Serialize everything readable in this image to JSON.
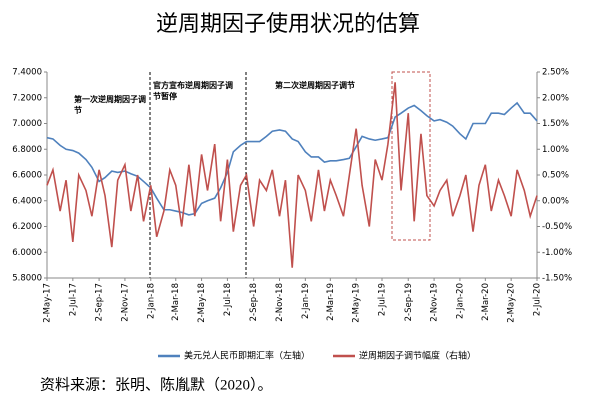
{
  "chart_data": {
    "type": "line",
    "title": "逆周期因子使用状况的估算",
    "source": "资料来源：张明、陈胤默（2020）。",
    "annotations": [
      "第一次逆周期因子调节",
      "官方宣布逆周期因子调节暂停",
      "第二次逆周期因子调节"
    ],
    "x": [
      "2-May-17",
      "16-May-17",
      "2-Jun-17",
      "16-Jun-17",
      "2-Jul-17",
      "16-Jul-17",
      "2-Aug-17",
      "16-Aug-17",
      "2-Sep-17",
      "16-Sep-17",
      "2-Oct-17",
      "16-Oct-17",
      "2-Nov-17",
      "16-Nov-17",
      "2-Dec-17",
      "16-Dec-17",
      "2-Jan-18",
      "16-Jan-18",
      "2-Feb-18",
      "16-Feb-18",
      "2-Mar-18",
      "16-Mar-18",
      "2-Apr-18",
      "16-Apr-18",
      "2-May-18",
      "16-May-18",
      "2-Jun-18",
      "16-Jun-18",
      "2-Jul-18",
      "16-Jul-18",
      "2-Aug-18",
      "16-Aug-18",
      "2-Sep-18",
      "16-Sep-18",
      "2-Oct-18",
      "16-Oct-18",
      "2-Nov-18",
      "16-Nov-18",
      "2-Dec-18",
      "16-Dec-18",
      "2-Jan-19",
      "16-Jan-19",
      "2-Feb-19",
      "16-Feb-19",
      "2-Mar-19",
      "16-Mar-19",
      "2-Apr-19",
      "16-Apr-19",
      "2-May-19",
      "16-May-19",
      "2-Jun-19",
      "16-Jun-19",
      "2-Jul-19",
      "16-Jul-19",
      "2-Aug-19",
      "16-Aug-19",
      "2-Sep-19",
      "16-Sep-19",
      "2-Oct-19",
      "16-Oct-19",
      "2-Nov-19",
      "16-Nov-19",
      "2-Dec-19",
      "16-Dec-19",
      "2-Jan-20",
      "16-Jan-20",
      "2-Feb-20",
      "16-Feb-20",
      "2-Mar-20",
      "16-Mar-20",
      "2-Apr-20",
      "16-Apr-20",
      "2-May-20",
      "16-May-20",
      "2-Jun-20",
      "16-Jun-20",
      "2-Jul-20"
    ],
    "xticks": [
      "2-May-17",
      "2-Jul-17",
      "2-Sep-17",
      "2-Nov-17",
      "2-Jan-18",
      "2-Mar-18",
      "2-May-18",
      "2-Jul-18",
      "2-Sep-18",
      "2-Nov-18",
      "2-Jan-19",
      "2-Mar-19",
      "2-May-19",
      "2-Jul-19",
      "2-Sep-19",
      "2-Nov-19",
      "2-Jan-20",
      "2-Mar-20",
      "2-May-20",
      "2-Jul-20"
    ],
    "series": [
      {
        "name": "美元兑人民币即期汇率（左轴）",
        "color": "#4f81bd",
        "axis": "y",
        "values": [
          6.89,
          6.88,
          6.83,
          6.8,
          6.79,
          6.77,
          6.72,
          6.66,
          6.55,
          6.58,
          6.63,
          6.62,
          6.63,
          6.61,
          6.59,
          6.55,
          6.5,
          6.42,
          6.33,
          6.33,
          6.32,
          6.31,
          6.29,
          6.3,
          6.38,
          6.4,
          6.42,
          6.5,
          6.62,
          6.78,
          6.83,
          6.86,
          6.86,
          6.86,
          6.9,
          6.94,
          6.95,
          6.94,
          6.88,
          6.86,
          6.78,
          6.74,
          6.74,
          6.7,
          6.71,
          6.71,
          6.72,
          6.73,
          6.82,
          6.9,
          6.88,
          6.87,
          6.88,
          6.89,
          7.05,
          7.08,
          7.12,
          7.14,
          7.1,
          7.06,
          7.02,
          7.03,
          7.01,
          6.98,
          6.92,
          6.88,
          7.0,
          7.0,
          7.0,
          7.08,
          7.08,
          7.07,
          7.12,
          7.16,
          7.08,
          7.08,
          7.02
        ]
      },
      {
        "name": "逆周期因子调节幅度（右轴）",
        "color": "#c0504d",
        "axis": "y2",
        "values": [
          0.3,
          0.6,
          -0.2,
          0.4,
          -0.8,
          0.5,
          0.2,
          -0.3,
          0.6,
          0.1,
          -0.9,
          0.4,
          0.7,
          -0.2,
          0.5,
          -0.4,
          0.3,
          -0.7,
          -0.2,
          0.6,
          0.3,
          -0.5,
          0.7,
          -0.3,
          0.9,
          0.2,
          1.1,
          -0.4,
          0.8,
          -0.6,
          0.3,
          0.5,
          -0.5,
          0.4,
          0.2,
          0.6,
          -0.3,
          0.4,
          -1.3,
          0.5,
          0.2,
          -0.4,
          0.6,
          -0.2,
          0.4,
          0.1,
          -0.3,
          0.5,
          1.4,
          0.3,
          -0.5,
          0.8,
          0.4,
          1.1,
          2.3,
          0.2,
          1.7,
          -0.4,
          1.3,
          0.1,
          -0.1,
          0.2,
          0.4,
          -0.3,
          0.1,
          0.5,
          -0.6,
          0.3,
          0.7,
          -0.2,
          0.4,
          0.1,
          -0.3,
          0.6,
          0.2,
          -0.3,
          0.1
        ]
      }
    ],
    "ylim": [
      5.8,
      7.4
    ],
    "yticks": [
      {
        "value": 5.8,
        "label": "5.8000"
      },
      {
        "value": 6.0,
        "label": "6.0000"
      },
      {
        "value": 6.2,
        "label": "6.2000"
      },
      {
        "value": 6.4,
        "label": "6.4000"
      },
      {
        "value": 6.6,
        "label": "6.6000"
      },
      {
        "value": 6.8,
        "label": "6.8000"
      },
      {
        "value": 7.0,
        "label": "7.0000"
      },
      {
        "value": 7.2,
        "label": "7.2000"
      },
      {
        "value": 7.4,
        "label": "7.4000"
      }
    ],
    "y2lim": [
      -1.5,
      2.5
    ],
    "y2ticks": [
      {
        "value": -1.5,
        "label": "-1.50%"
      },
      {
        "value": -1.0,
        "label": "-1.00%"
      },
      {
        "value": -0.5,
        "label": "-0.50%"
      },
      {
        "value": 0.0,
        "label": "0.00%"
      },
      {
        "value": 0.5,
        "label": "0.50%"
      },
      {
        "value": 1.0,
        "label": "1.00%"
      },
      {
        "value": 1.5,
        "label": "1.50%"
      },
      {
        "value": 2.0,
        "label": "2.00%"
      },
      {
        "value": 2.5,
        "label": "2.50%"
      }
    ],
    "grid": false,
    "legend": "bottom"
  }
}
